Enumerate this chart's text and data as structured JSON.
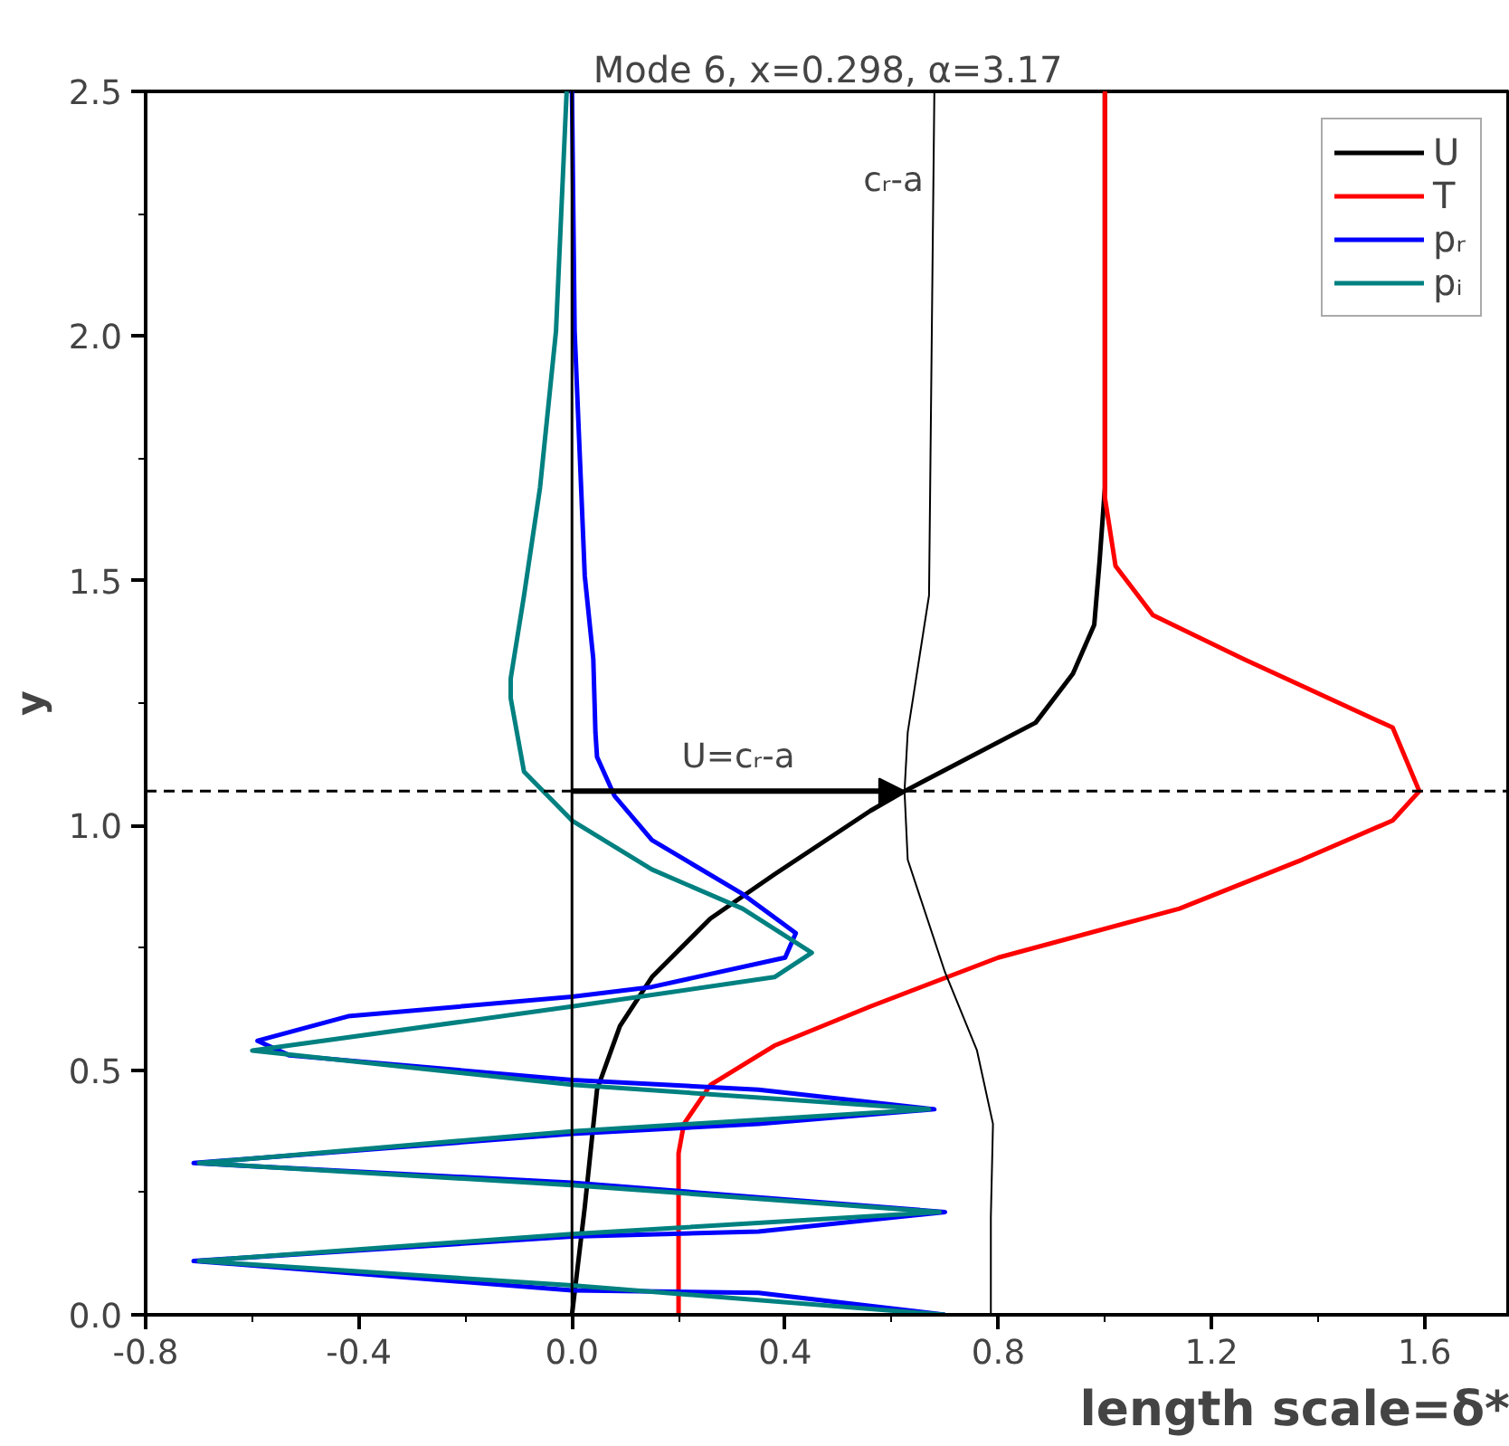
{
  "chart_data": {
    "type": "line",
    "title": "Mode 6, x=0.298, α=3.17",
    "xlabel": "length scale=δ*",
    "ylabel": "y",
    "xlim": [
      -0.8,
      1.76
    ],
    "ylim": [
      0,
      2.5
    ],
    "xticks": [
      -0.8,
      -0.4,
      {
        "value": 0,
        "label": "0.0"
      },
      0.4,
      0.8,
      1.2,
      1.6
    ],
    "yticks": [
      {
        "value": 0,
        "label": "0.0"
      },
      0.5,
      {
        "value": 1,
        "label": "1.0"
      },
      1.5,
      {
        "value": 2,
        "label": "2.0"
      },
      2.5
    ],
    "grid": false,
    "legend": "top right",
    "line_style": "solid",
    "marker": "none",
    "series": [
      {
        "name": "U",
        "color": "#000000",
        "x": [
          0,
          0.024,
          0.047,
          0.09,
          0.15,
          0.26,
          0.38,
          0.56,
          0.624,
          0.87,
          0.94,
          0.98,
          0.99,
          1.0,
          1.0
        ],
        "values": [
          0,
          0.22,
          0.46,
          0.59,
          0.69,
          0.81,
          0.9,
          1.03,
          1.07,
          1.21,
          1.31,
          1.41,
          1.54,
          1.69,
          2.5
        ]
      },
      {
        "name": "T",
        "color": "#ff0000",
        "x": [
          0.2,
          0.2,
          0.21,
          0.26,
          0.35,
          0.38,
          0.56,
          0.8,
          1.14,
          1.37,
          1.54,
          1.59,
          1.54,
          1.26,
          1.09,
          1.02,
          1.0,
          1.0
        ],
        "values": [
          0,
          0.33,
          0.39,
          0.47,
          0.53,
          0.55,
          0.63,
          0.73,
          0.83,
          0.93,
          1.01,
          1.07,
          1.2,
          1.34,
          1.43,
          1.53,
          1.67,
          2.5
        ]
      },
      {
        "name": "pᵣ",
        "color": "#0000ff",
        "x": [
          0.7,
          0.35,
          0,
          -0.71,
          0,
          0.35,
          0.7,
          0.35,
          0,
          -0.71,
          0,
          0.35,
          0.68,
          0.35,
          0,
          -0.53,
          -0.59,
          -0.42,
          0,
          0.15,
          0.4,
          0.42,
          0.32,
          0.15,
          0.08,
          0.047,
          0.044,
          0.04,
          0.024,
          0.005,
          0
        ],
        "values": [
          0,
          0.045,
          0.05,
          0.11,
          0.16,
          0.17,
          0.21,
          0.24,
          0.27,
          0.31,
          0.37,
          0.39,
          0.42,
          0.46,
          0.48,
          0.53,
          0.56,
          0.61,
          0.65,
          0.67,
          0.73,
          0.78,
          0.86,
          0.97,
          1.06,
          1.14,
          1.19,
          1.34,
          1.51,
          2.01,
          2.5
        ]
      },
      {
        "name": "pᵢ",
        "color": "#008080",
        "x": [
          0.7,
          0,
          -0.7,
          0,
          0.69,
          0,
          -0.7,
          0,
          0.67,
          0,
          -0.6,
          0,
          0.38,
          0.45,
          0.32,
          0.15,
          0,
          -0.09,
          -0.115,
          -0.115,
          -0.09,
          -0.06,
          -0.03,
          -0.01
        ],
        "values": [
          0,
          0.06,
          0.11,
          0.165,
          0.21,
          0.265,
          0.31,
          0.375,
          0.42,
          0.47,
          0.54,
          0.63,
          0.69,
          0.74,
          0.83,
          0.91,
          1.01,
          1.11,
          1.26,
          1.3,
          1.47,
          1.69,
          2.01,
          2.5
        ]
      },
      {
        "color": "#000000",
        "x": [
          0.786,
          0.786,
          0.79,
          0.76,
          0.7,
          0.63,
          0.624,
          0.63,
          0.67,
          0.68
        ],
        "values": [
          0,
          0.2,
          0.39,
          0.54,
          0.7,
          0.93,
          1.07,
          1.19,
          1.47,
          2.5
        ]
      }
    ],
    "ref_lines": [
      {
        "axis": "y",
        "value": 1.07,
        "color": "#000000",
        "line_style": "dashed"
      },
      {
        "axis": "x",
        "value": 0,
        "color": "#000000",
        "line_style": "solid"
      }
    ],
    "annotations": [
      "U=cᵣ-a",
      "cᵣ-a"
    ]
  }
}
